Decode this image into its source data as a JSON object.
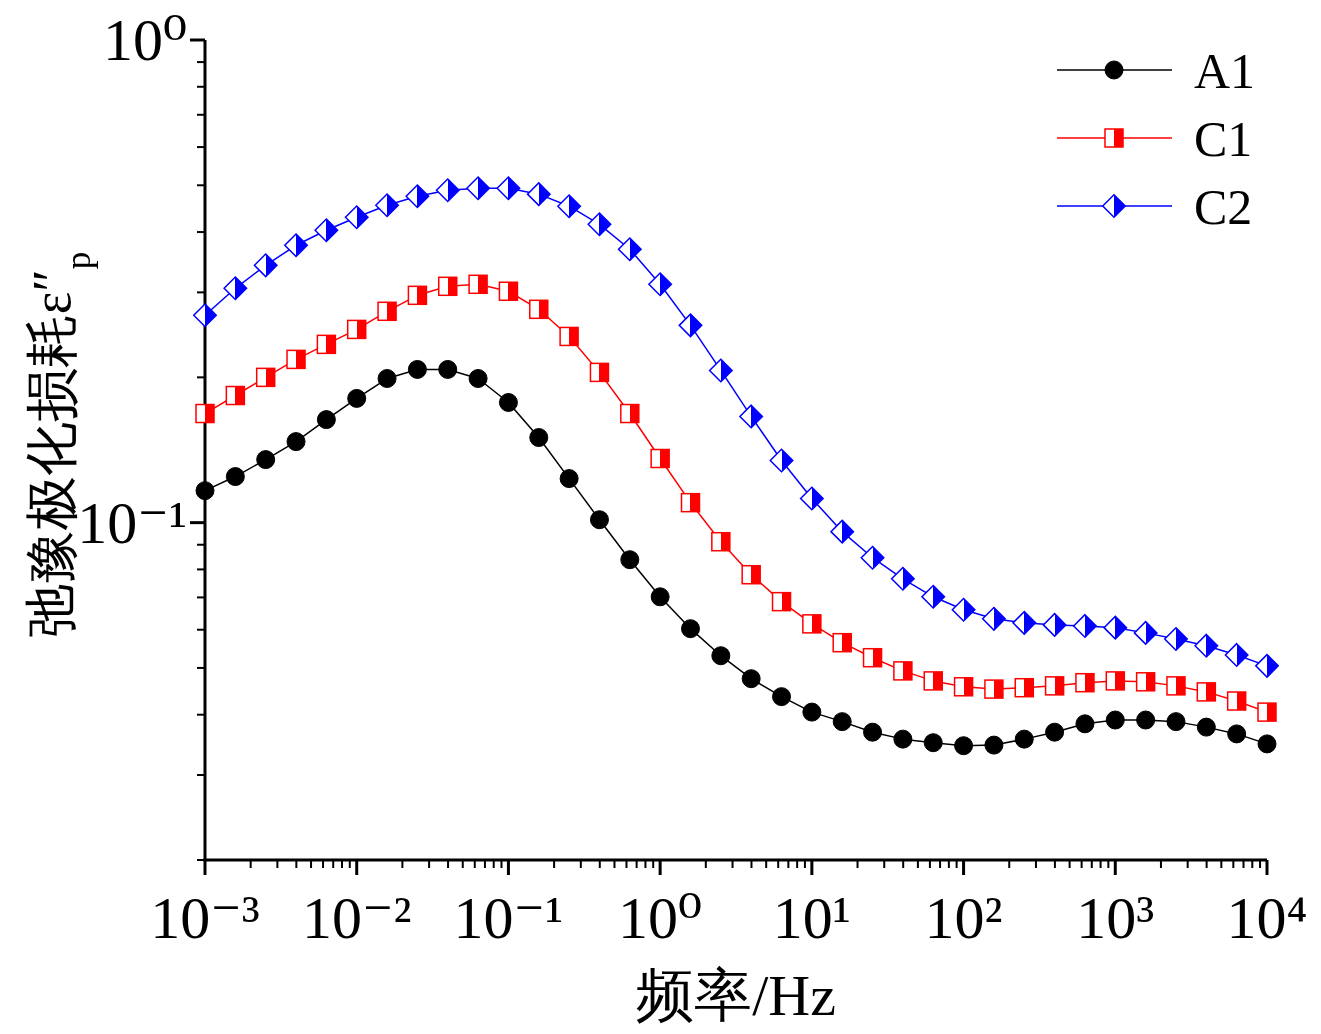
{
  "chart_data": {
    "type": "line",
    "xlabel": "频率/Hz",
    "ylabel": "弛豫极化损耗ε″$_{p}$",
    "log": "xy",
    "grid": false,
    "legend": "top right",
    "xlim": [
      0.001,
      10000
    ],
    "ylim": [
      0.02,
      1
    ],
    "xticks": [
      {
        "value": 0.001,
        "label": "10⁻³"
      },
      {
        "value": 0.01,
        "label": "10⁻²"
      },
      {
        "value": 0.1,
        "label": "10⁻¹"
      },
      {
        "value": 1,
        "label": "10⁰"
      },
      {
        "value": 10,
        "label": "10¹"
      },
      {
        "value": 100,
        "label": "10²"
      },
      {
        "value": 1000,
        "label": "10³"
      },
      {
        "value": 10000,
        "label": "10⁴"
      }
    ],
    "yticks": [
      {
        "value": 0.1,
        "label": "10⁻¹"
      },
      {
        "value": 1,
        "label": "10⁰"
      }
    ],
    "x": [
      0.001,
      0.001585,
      0.002512,
      0.003981,
      0.00631,
      0.01,
      0.01585,
      0.02512,
      0.03981,
      0.0631,
      0.1,
      0.1585,
      0.2512,
      0.3981,
      0.631,
      1,
      1.585,
      2.512,
      3.981,
      6.31,
      10,
      15.85,
      25.12,
      39.81,
      63.1,
      100,
      158.5,
      251.2,
      398.1,
      631,
      1000,
      1585,
      2512,
      3981,
      6310,
      10000
    ],
    "series": [
      {
        "name": "A1",
        "color": "#000000",
        "marker": "circle",
        "values": [
          0.1165,
          0.1246,
          0.1351,
          0.1472,
          0.1635,
          0.1809,
          0.1989,
          0.2077,
          0.2077,
          0.1989,
          0.1774,
          0.1501,
          0.1234,
          0.1014,
          0.0838,
          0.0702,
          0.0603,
          0.053,
          0.0475,
          0.0436,
          0.0405,
          0.0387,
          0.0368,
          0.0356,
          0.035,
          0.0345,
          0.0346,
          0.0356,
          0.0368,
          0.0383,
          0.039,
          0.039,
          0.0387,
          0.0377,
          0.0365,
          0.0348
        ]
      },
      {
        "name": "C1",
        "color": "#ff0000",
        "marker": "square",
        "values": [
          0.1683,
          0.1834,
          0.2,
          0.2179,
          0.2341,
          0.2514,
          0.2741,
          0.2958,
          0.3088,
          0.3118,
          0.3016,
          0.2767,
          0.2431,
          0.2048,
          0.1683,
          0.1358,
          0.11,
          0.0913,
          0.078,
          0.0686,
          0.0617,
          0.0564,
          0.0525,
          0.0493,
          0.047,
          0.0457,
          0.0452,
          0.0455,
          0.0459,
          0.0466,
          0.047,
          0.0468,
          0.0459,
          0.0446,
          0.0427,
          0.0405
        ]
      },
      {
        "name": "C2",
        "color": "#0000ff",
        "marker": "diamond",
        "values": [
          0.2689,
          0.3059,
          0.3413,
          0.3756,
          0.4035,
          0.4294,
          0.4547,
          0.4746,
          0.4884,
          0.4931,
          0.4931,
          0.4793,
          0.4525,
          0.4151,
          0.3685,
          0.3118,
          0.2563,
          0.2067,
          0.166,
          0.1345,
          0.1122,
          0.0958,
          0.0846,
          0.0765,
          0.0702,
          0.066,
          0.0632,
          0.062,
          0.0614,
          0.0611,
          0.0606,
          0.0591,
          0.0574,
          0.0556,
          0.0532,
          0.0505
        ]
      }
    ]
  }
}
